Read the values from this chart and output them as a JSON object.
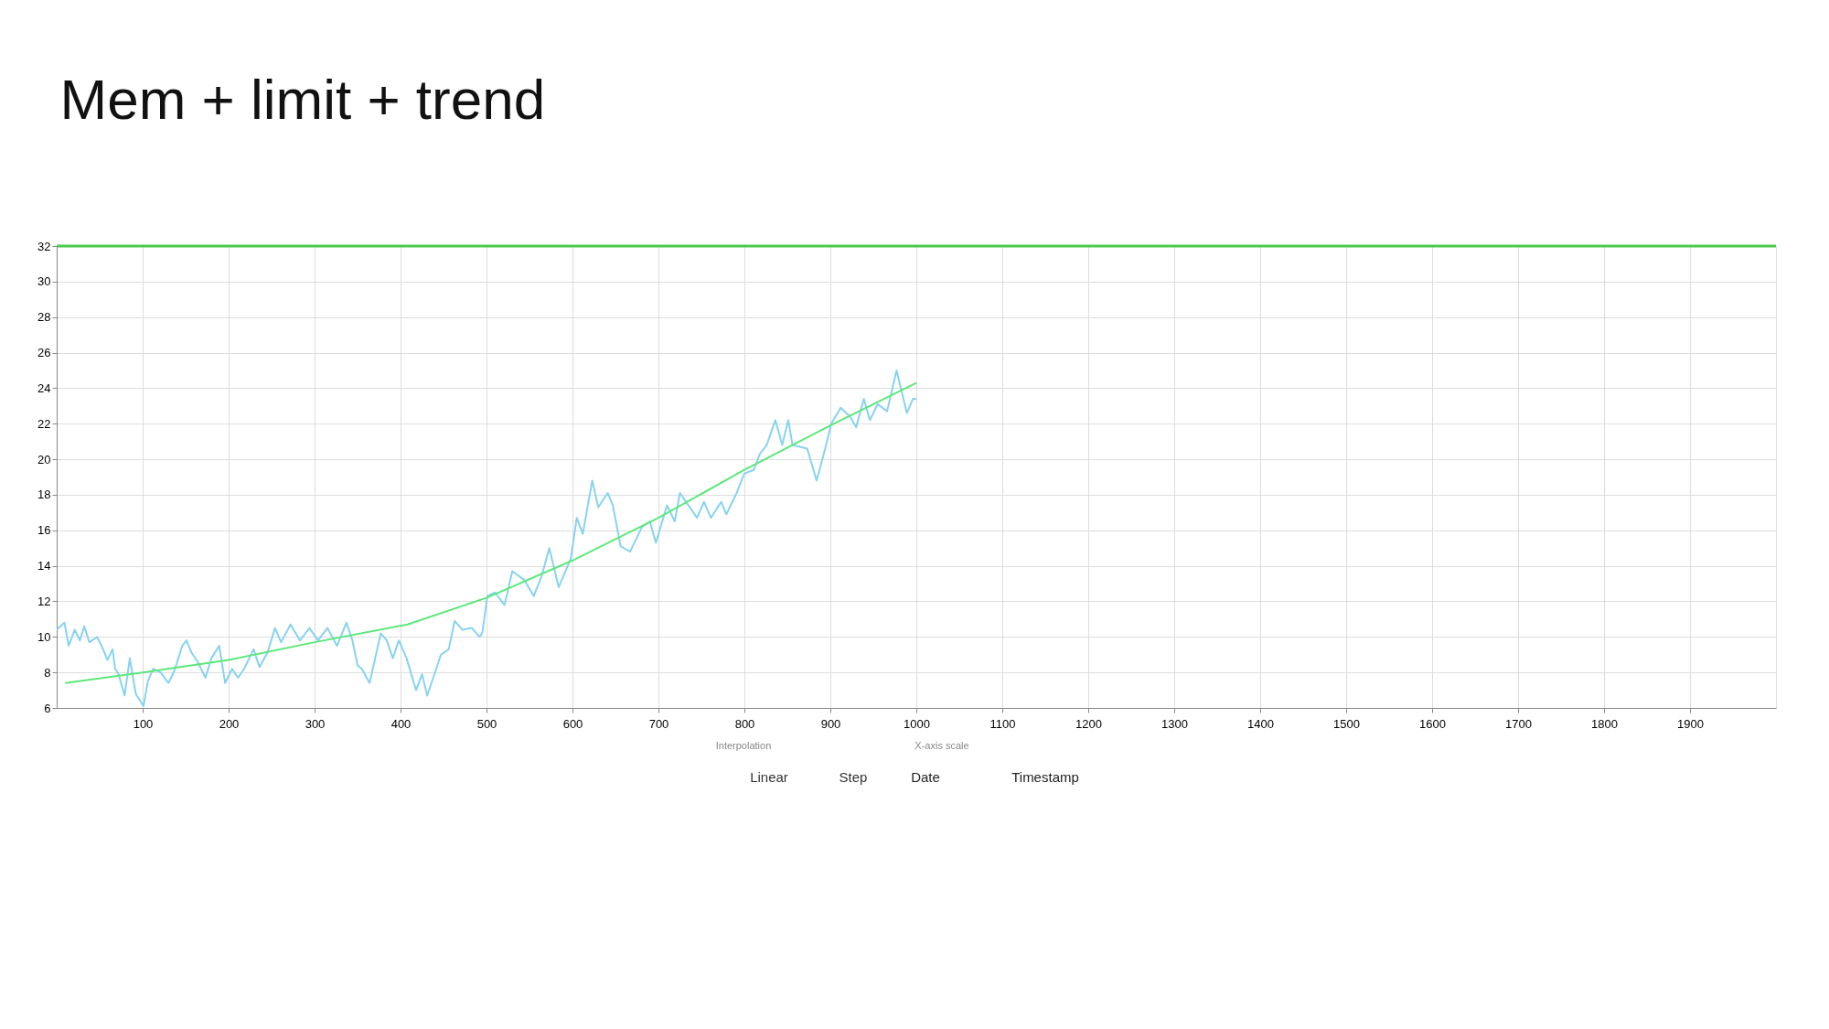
{
  "chart_data": {
    "type": "line",
    "title": "Mem + limit + trend",
    "xlim": [
      0,
      2000
    ],
    "xticks": [
      100,
      200,
      300,
      400,
      500,
      600,
      700,
      800,
      900,
      1000,
      1100,
      1200,
      1300,
      1400,
      1500,
      1600,
      1700,
      1800,
      1900
    ],
    "ylim": [
      6,
      32
    ],
    "yticks": [
      6,
      8,
      10,
      12,
      14,
      16,
      18,
      20,
      22,
      24,
      26,
      28,
      30,
      32
    ],
    "grid": true,
    "marker": "none",
    "line_style": "solid",
    "series": [
      {
        "color": "#87d3f0",
        "x": [
          0,
          9,
          14,
          21,
          27,
          32,
          38,
          47,
          54,
          59,
          65,
          68,
          72,
          79,
          85,
          92,
          101,
          106,
          112,
          121,
          130,
          137,
          146,
          151,
          157,
          164,
          173,
          180,
          189,
          196,
          204,
          211,
          218,
          229,
          236,
          245,
          254,
          261,
          272,
          283,
          294,
          304,
          315,
          326,
          337,
          344,
          350,
          355,
          364,
          377,
          384,
          391,
          398,
          407,
          418,
          425,
          431,
          438,
          447,
          456,
          463,
          472,
          483,
          492,
          495,
          501,
          510,
          521,
          530,
          544,
          555,
          564,
          573,
          584,
          598,
          605,
          612,
          623,
          630,
          641,
          647,
          656,
          667,
          681,
          690,
          697,
          710,
          719,
          725,
          735,
          745,
          753,
          761,
          773,
          779,
          791,
          800,
          811,
          818,
          826,
          836,
          844,
          851,
          856,
          873,
          884,
          894,
          901,
          912,
          923,
          930,
          939,
          946,
          955,
          966,
          977,
          984,
          989,
          996,
          1000
        ],
        "values": [
          10.4,
          10.8,
          9.5,
          10.4,
          9.8,
          10.6,
          9.7,
          10.0,
          9.3,
          8.7,
          9.3,
          8.2,
          7.9,
          6.7,
          8.8,
          6.8,
          6.1,
          7.5,
          8.2,
          8.0,
          7.4,
          8.1,
          9.5,
          9.8,
          9.1,
          8.6,
          7.7,
          8.8,
          9.5,
          7.4,
          8.2,
          7.7,
          8.2,
          9.3,
          8.3,
          9.1,
          10.5,
          9.7,
          10.7,
          9.8,
          10.5,
          9.8,
          10.5,
          9.5,
          10.8,
          9.8,
          8.4,
          8.2,
          7.4,
          10.2,
          9.8,
          8.8,
          9.8,
          8.8,
          7.0,
          7.9,
          6.7,
          7.7,
          9.0,
          9.3,
          10.9,
          10.4,
          10.5,
          10.0,
          10.2,
          12.3,
          12.5,
          11.8,
          13.7,
          13.2,
          12.3,
          13.4,
          15.0,
          12.8,
          14.4,
          16.7,
          15.8,
          18.8,
          17.3,
          18.1,
          17.4,
          15.1,
          14.8,
          16.2,
          16.5,
          15.3,
          17.4,
          16.5,
          18.1,
          17.4,
          16.7,
          17.6,
          16.7,
          17.6,
          16.9,
          18.1,
          19.2,
          19.4,
          20.3,
          20.8,
          22.2,
          20.8,
          22.2,
          20.8,
          20.6,
          18.8,
          20.6,
          22.0,
          22.9,
          22.4,
          21.8,
          23.4,
          22.2,
          23.1,
          22.7,
          25.0,
          23.6,
          22.6,
          23.4,
          23.4
        ]
      },
      {
        "color": "#5ce87a",
        "x": [
          10,
          100,
          200,
          300,
          408,
          500,
          600,
          700,
          800,
          900,
          1000
        ],
        "values": [
          7.4,
          8.0,
          8.7,
          9.7,
          10.7,
          12.2,
          14.3,
          16.7,
          19.4,
          21.9,
          24.3
        ]
      }
    ],
    "ref_lines": [
      {
        "axis": "y",
        "value": 32,
        "color": "#4cc94c",
        "line_style": "solid"
      }
    ],
    "annotations": [
      "Interpolation",
      "Linear",
      "Step",
      "X-axis scale",
      "Date",
      "Timestamp"
    ]
  }
}
